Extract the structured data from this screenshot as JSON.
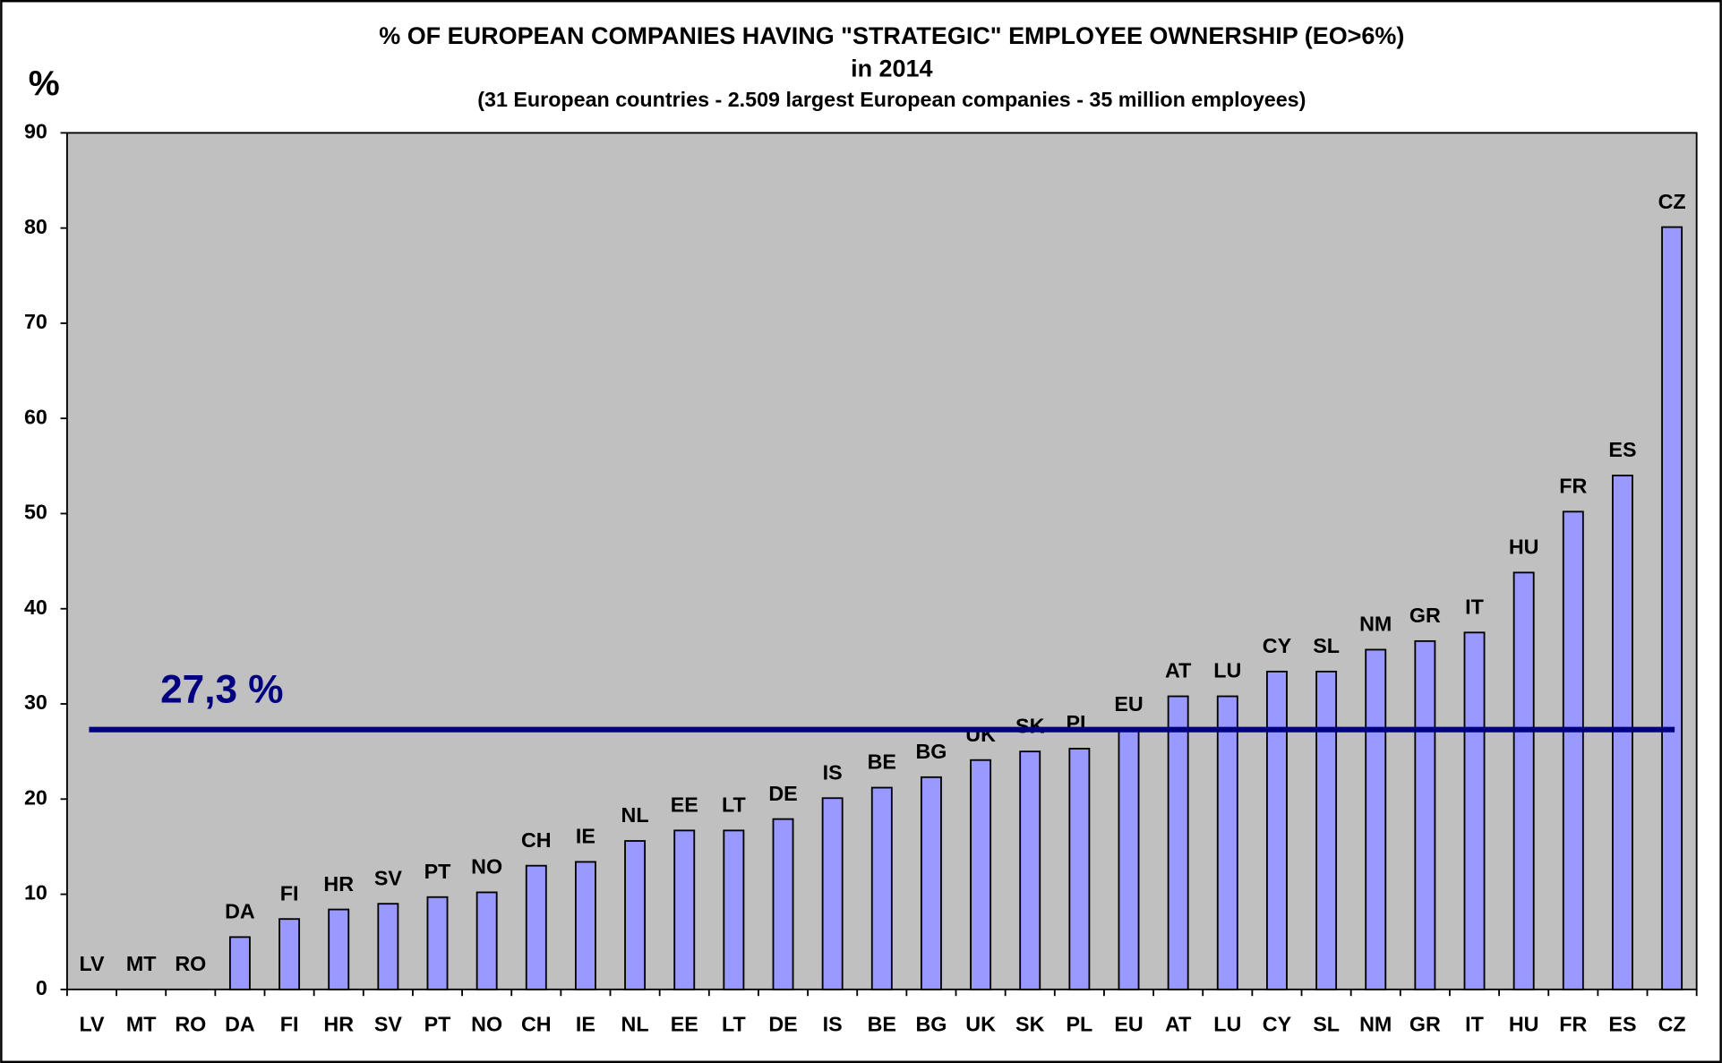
{
  "chart_data": {
    "type": "bar",
    "title": [
      "% OF EUROPEAN COMPANIES HAVING \"STRATEGIC\" EMPLOYEE OWNERSHIP (EO>6%)",
      "in 2014"
    ],
    "subtitle": "(31 European countries - 2.509 largest European companies - 35 million employees)",
    "y_axis_label": "%",
    "categories": [
      "LV",
      "MT",
      "RO",
      "DA",
      "FI",
      "HR",
      "SV",
      "PT",
      "NO",
      "CH",
      "IE",
      "NL",
      "EE",
      "LT",
      "DE",
      "IS",
      "BE",
      "BG",
      "UK",
      "SK",
      "PL",
      "EU",
      "AT",
      "LU",
      "CY",
      "SL",
      "NM",
      "GR",
      "IT",
      "HU",
      "FR",
      "ES",
      "CZ"
    ],
    "values": [
      0,
      0,
      0,
      5.5,
      7.4,
      8.4,
      9.0,
      9.7,
      10.2,
      13.0,
      13.4,
      15.6,
      16.7,
      16.7,
      17.9,
      20.1,
      21.2,
      22.3,
      24.1,
      25.0,
      25.3,
      27.3,
      30.8,
      30.8,
      33.4,
      33.4,
      35.7,
      36.6,
      37.5,
      43.8,
      50.2,
      54.0,
      80.1
    ],
    "color": "#9999ff",
    "plot_background": "#c0c0c0",
    "ylim": [
      0,
      90
    ],
    "yticks": [
      0,
      10,
      20,
      30,
      40,
      50,
      60,
      70,
      80,
      90
    ],
    "grid": false,
    "reference_line": {
      "value": 27.3,
      "label": "27,3 %",
      "color": "#000080"
    }
  }
}
